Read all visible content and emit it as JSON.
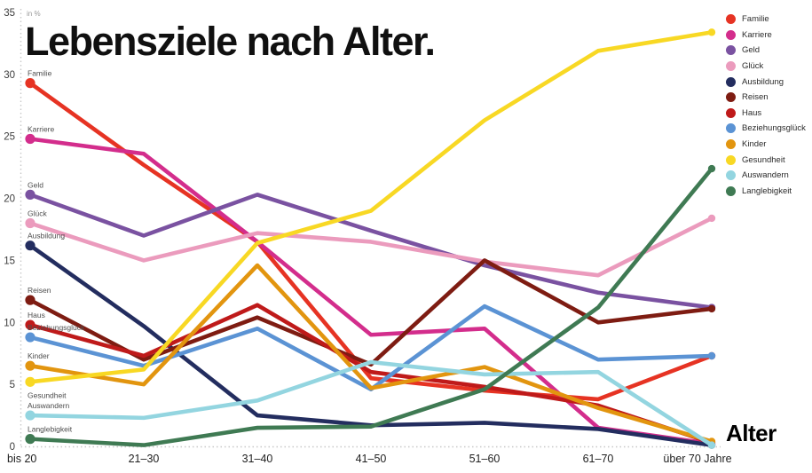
{
  "title": "Lebensziele nach Alter.",
  "x_axis_label": "Alter",
  "y_unit_label": "in %",
  "chart_data": {
    "type": "line",
    "title": "Lebensziele nach Alter.",
    "xlabel": "Alter",
    "ylabel": "in %",
    "ylim": [
      0,
      35
    ],
    "y_ticks": [
      0,
      5,
      10,
      15,
      20,
      25,
      30,
      35
    ],
    "grid": false,
    "legend_position": "right",
    "categories": [
      "bis 20",
      "21–30",
      "31–40",
      "41–50",
      "51–60",
      "61–70",
      "über 70 Jahre"
    ],
    "series": [
      {
        "name": "Familie",
        "color": "#e63323",
        "values": [
          29.3,
          22.7,
          16.5,
          5.5,
          4.5,
          3.8,
          7.3
        ]
      },
      {
        "name": "Karriere",
        "color": "#d32d8c",
        "values": [
          24.8,
          23.6,
          16.5,
          9.0,
          9.5,
          1.5,
          0.2
        ]
      },
      {
        "name": "Geld",
        "color": "#7a52a1",
        "values": [
          20.3,
          17.0,
          20.3,
          17.4,
          14.6,
          12.4,
          11.2
        ]
      },
      {
        "name": "Glück",
        "color": "#eb9bbd",
        "values": [
          18.0,
          15.0,
          17.2,
          16.5,
          14.9,
          13.8,
          18.4
        ]
      },
      {
        "name": "Ausbildung",
        "color": "#232d5f",
        "values": [
          16.2,
          9.7,
          2.5,
          1.7,
          1.9,
          1.4,
          0.1
        ]
      },
      {
        "name": "Reisen",
        "color": "#7e1c12",
        "values": [
          11.8,
          7.0,
          10.4,
          6.6,
          15.0,
          10.0,
          11.1
        ]
      },
      {
        "name": "Haus",
        "color": "#bf1a1a",
        "values": [
          9.8,
          7.3,
          11.4,
          6.0,
          4.8,
          3.3,
          0.3
        ]
      },
      {
        "name": "Beziehungsglück",
        "color": "#5b93d4",
        "values": [
          8.8,
          6.5,
          9.5,
          4.6,
          11.3,
          7.0,
          7.3
        ]
      },
      {
        "name": "Kinder",
        "color": "#e2950f",
        "values": [
          6.5,
          5.0,
          14.6,
          4.7,
          6.4,
          3.1,
          0.4
        ]
      },
      {
        "name": "Gesundheit",
        "color": "#f8d824",
        "values": [
          5.2,
          6.2,
          16.4,
          19.0,
          26.3,
          31.9,
          33.4
        ],
        "start_label_below": true
      },
      {
        "name": "Auswandern",
        "color": "#93d5e0",
        "values": [
          2.5,
          2.3,
          3.7,
          6.8,
          5.8,
          6.0,
          0.1
        ]
      },
      {
        "name": "Langlebigkeit",
        "color": "#3f7a53",
        "values": [
          0.6,
          0.1,
          1.5,
          1.6,
          4.6,
          11.2,
          22.4
        ]
      }
    ]
  }
}
